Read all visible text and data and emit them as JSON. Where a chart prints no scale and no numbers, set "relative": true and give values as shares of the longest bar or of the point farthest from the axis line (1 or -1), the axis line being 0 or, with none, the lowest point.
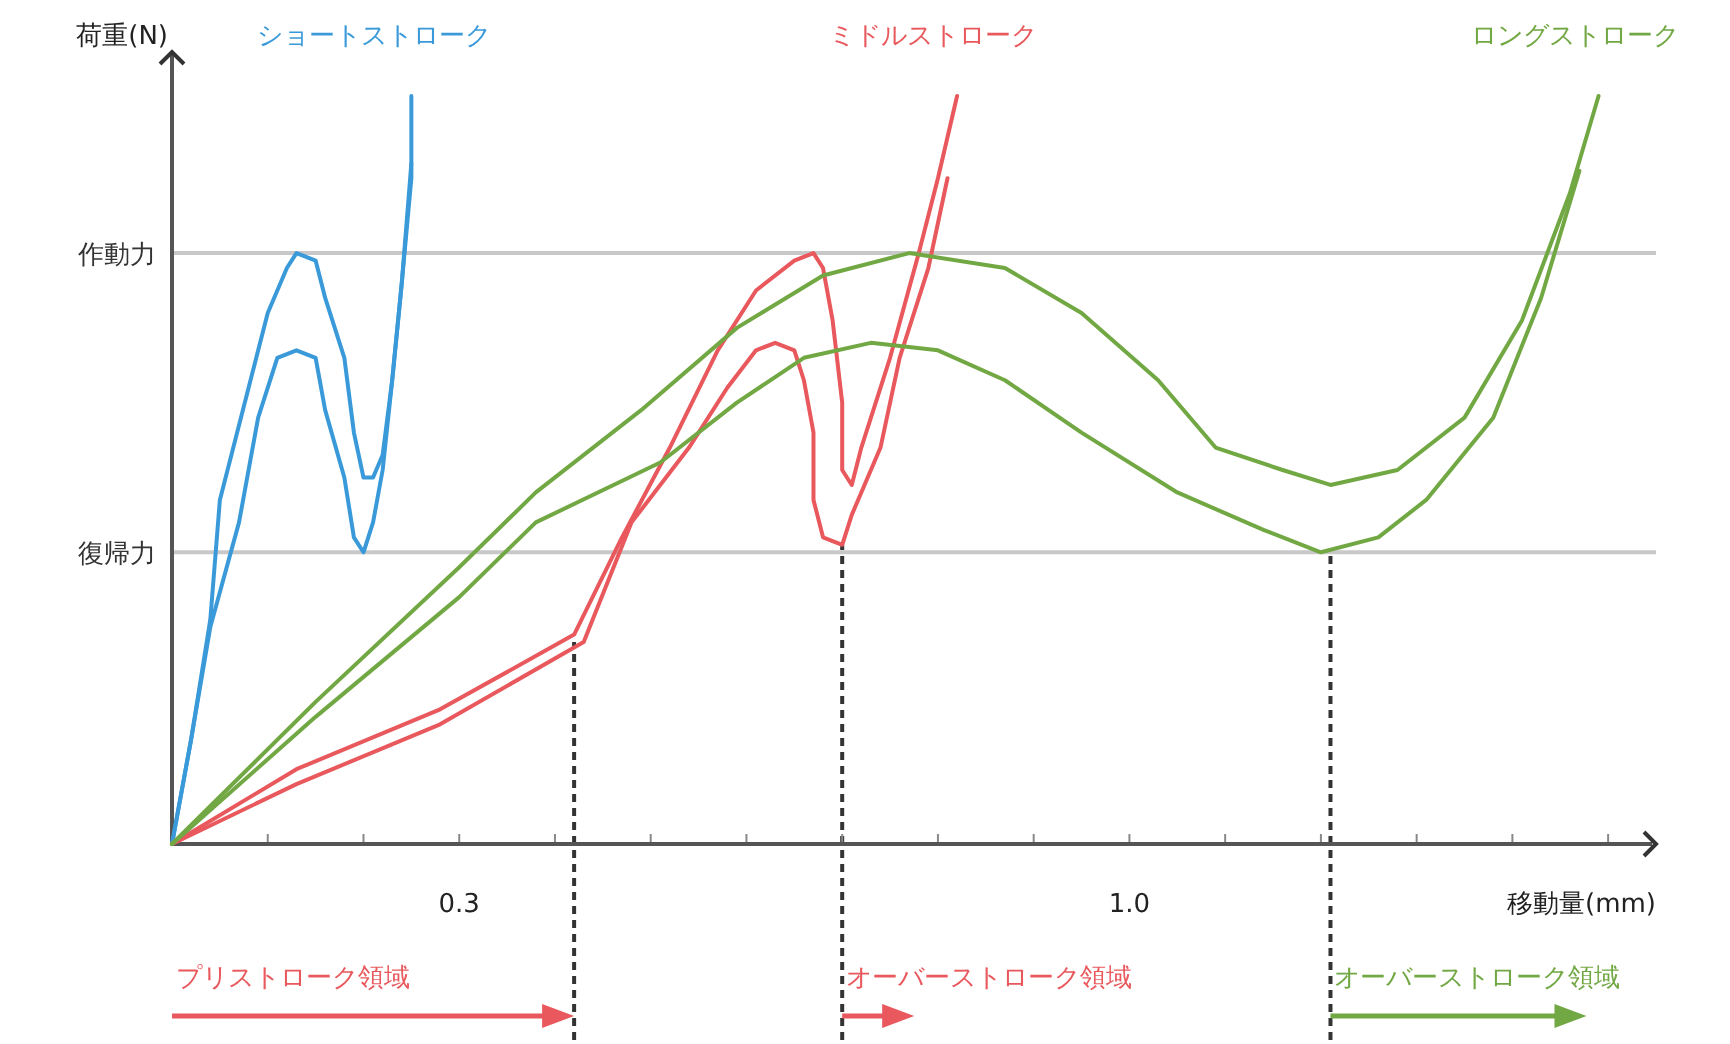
{
  "chart_data": {
    "type": "line",
    "relative": true,
    "xlabel": "移動量(mm)",
    "ylabel": "荷重(N)",
    "xlim": [
      0,
      1.55
    ],
    "xticks": [
      {
        "value": 0.1,
        "label": null
      },
      {
        "value": 0.2,
        "label": null
      },
      0.3,
      {
        "value": 0.4,
        "label": null
      },
      {
        "value": 0.5,
        "label": null
      },
      {
        "value": 0.6,
        "label": null
      },
      {
        "value": 0.7,
        "label": null
      },
      {
        "value": 0.8,
        "label": null
      },
      {
        "value": 0.9,
        "label": null
      },
      {
        "value": 1.0,
        "label": "1.0"
      },
      {
        "value": 1.1,
        "label": null
      },
      {
        "value": 1.2,
        "label": null
      },
      {
        "value": 1.3,
        "label": null
      },
      {
        "value": 1.4,
        "label": null
      },
      {
        "value": 1.5,
        "label": null
      }
    ],
    "series": [
      {
        "name": "ショートストローク",
        "color": "#3a9ad9",
        "x": [
          0,
          0.02,
          0.04,
          0.05,
          0.08,
          0.1,
          0.12,
          0.13,
          0.15,
          0.16,
          0.18,
          0.19,
          0.2,
          0.21,
          0.22,
          0.23,
          0.24,
          0.25,
          0.25
        ],
        "values": [
          0,
          0.14,
          0.3,
          0.46,
          0.61,
          0.71,
          0.77,
          0.79,
          0.78,
          0.73,
          0.65,
          0.55,
          0.49,
          0.49,
          0.52,
          0.62,
          0.75,
          0.89,
          1.0
        ]
      },
      {
        "color": "#3a9ad9",
        "x": [
          0,
          0.02,
          0.04,
          0.07,
          0.09,
          0.11,
          0.13,
          0.15,
          0.16,
          0.18,
          0.19,
          0.2,
          0.21,
          0.22,
          0.23,
          0.24,
          0.25
        ],
        "values": [
          0,
          0.14,
          0.29,
          0.43,
          0.57,
          0.65,
          0.66,
          0.65,
          0.58,
          0.49,
          0.41,
          0.39,
          0.43,
          0.5,
          0.62,
          0.75,
          0.91
        ]
      },
      {
        "name": "ミドルストローク",
        "color": "#e8585c",
        "x": [
          0,
          0.13,
          0.28,
          0.42,
          0.47,
          0.52,
          0.57,
          0.61,
          0.65,
          0.67,
          0.68,
          0.69,
          0.7,
          0.7,
          0.71,
          0.72,
          0.75,
          0.78,
          0.8,
          0.82
        ],
        "values": [
          0,
          0.1,
          0.18,
          0.28,
          0.41,
          0.53,
          0.66,
          0.74,
          0.78,
          0.79,
          0.77,
          0.7,
          0.59,
          0.5,
          0.48,
          0.53,
          0.65,
          0.79,
          0.89,
          1.0
        ]
      },
      {
        "color": "#e8585c",
        "x": [
          0,
          0.13,
          0.28,
          0.43,
          0.48,
          0.54,
          0.58,
          0.61,
          0.63,
          0.65,
          0.66,
          0.67,
          0.67,
          0.68,
          0.7,
          0.71,
          0.74,
          0.76,
          0.79,
          0.81
        ],
        "values": [
          0,
          0.08,
          0.16,
          0.27,
          0.43,
          0.53,
          0.61,
          0.66,
          0.67,
          0.66,
          0.62,
          0.55,
          0.46,
          0.41,
          0.4,
          0.44,
          0.53,
          0.65,
          0.77,
          0.89
        ]
      },
      {
        "name": "ロングストローク",
        "color": "#72a844",
        "x": [
          0,
          0.15,
          0.3,
          0.38,
          0.49,
          0.59,
          0.68,
          0.77,
          0.87,
          0.95,
          1.03,
          1.09,
          1.16,
          1.21,
          1.28,
          1.35,
          1.41,
          1.46,
          1.49
        ],
        "values": [
          0,
          0.19,
          0.37,
          0.47,
          0.58,
          0.69,
          0.76,
          0.79,
          0.77,
          0.71,
          0.62,
          0.53,
          0.5,
          0.48,
          0.5,
          0.57,
          0.7,
          0.87,
          1.0
        ]
      },
      {
        "color": "#72a844",
        "x": [
          0,
          0.15,
          0.3,
          0.38,
          0.51,
          0.59,
          0.66,
          0.73,
          0.8,
          0.87,
          0.95,
          1.05,
          1.14,
          1.2,
          1.26,
          1.31,
          1.38,
          1.43,
          1.47
        ],
        "values": [
          0,
          0.17,
          0.33,
          0.43,
          0.51,
          0.59,
          0.65,
          0.67,
          0.66,
          0.62,
          0.55,
          0.47,
          0.42,
          0.39,
          0.41,
          0.46,
          0.57,
          0.73,
          0.9
        ]
      }
    ],
    "ref_lines": [
      {
        "axis": "y",
        "value": 0.79,
        "label": "作動力",
        "color": "#c8c8c8",
        "line_style": "solid"
      },
      {
        "axis": "y",
        "value": 0.39,
        "label": "復帰力",
        "color": "#c8c8c8",
        "line_style": "solid"
      },
      {
        "axis": "x",
        "value": 0.42,
        "color": "#333333",
        "line_style": "dashed"
      },
      {
        "axis": "x",
        "value": 0.7,
        "color": "#333333",
        "line_style": "dashed"
      },
      {
        "axis": "x",
        "value": 1.21,
        "color": "#333333",
        "line_style": "dashed"
      }
    ],
    "annotations": [
      "プリストローク領域",
      "オーバーストローク領域",
      "オーバーストローク領域"
    ]
  }
}
